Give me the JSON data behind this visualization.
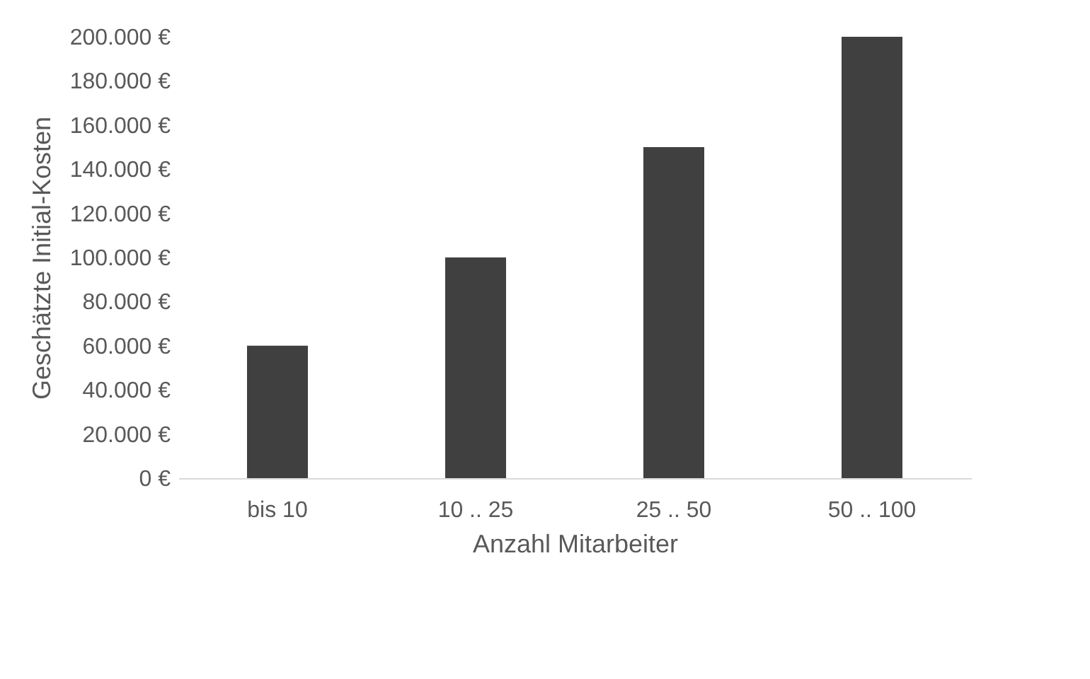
{
  "chart_data": {
    "type": "bar",
    "xlabel": "Anzahl Mitarbeiter",
    "ylabel": "Geschätzte Initial-Kosten",
    "categories": [
      "bis 10",
      "10 .. 25",
      "25 .. 50",
      "50 .. 100"
    ],
    "values": [
      60000,
      100000,
      150000,
      200000
    ],
    "color": "#404040",
    "ylim": [
      0,
      200000
    ],
    "yticks": [
      {
        "value": 0,
        "label": "0 €"
      },
      {
        "value": 20000,
        "label": "20.000 €"
      },
      {
        "value": 40000,
        "label": "40.000 €"
      },
      {
        "value": 60000,
        "label": "60.000 €"
      },
      {
        "value": 80000,
        "label": "80.000 €"
      },
      {
        "value": 100000,
        "label": "100.000 €"
      },
      {
        "value": 120000,
        "label": "120.000 €"
      },
      {
        "value": 140000,
        "label": "140.000 €"
      },
      {
        "value": 160000,
        "label": "160.000 €"
      },
      {
        "value": 180000,
        "label": "180.000 €"
      },
      {
        "value": 200000,
        "label": "200.000 €"
      }
    ],
    "grid": false
  }
}
